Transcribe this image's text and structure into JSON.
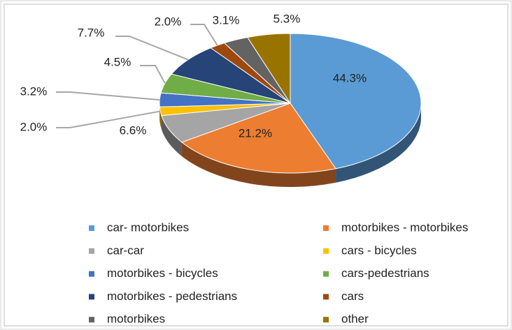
{
  "chart_data": {
    "type": "pie",
    "categories": [
      "car- motorbikes",
      "motorbikes - motorbikes",
      "car-car",
      "cars - bicycles",
      "motorbikes - bicycles",
      "cars-pedestrians",
      "motorbikes - pedestrians",
      "cars",
      "motorbikes",
      "other"
    ],
    "values": [
      44.3,
      21.2,
      6.6,
      2.0,
      3.2,
      4.5,
      7.7,
      2.0,
      3.1,
      5.3
    ],
    "value_labels": [
      "44.3%",
      "21.2%",
      "6.6%",
      "2.0%",
      "3.2%",
      "4.5%",
      "7.7%",
      "2.0%",
      "3.1%",
      "5.3%"
    ],
    "colors": [
      "#5b9bd5",
      "#ed7d31",
      "#a5a5a5",
      "#ffc000",
      "#4472c4",
      "#70ad47",
      "#264478",
      "#9e480e",
      "#636363",
      "#997300"
    ],
    "legend": "bottom"
  }
}
